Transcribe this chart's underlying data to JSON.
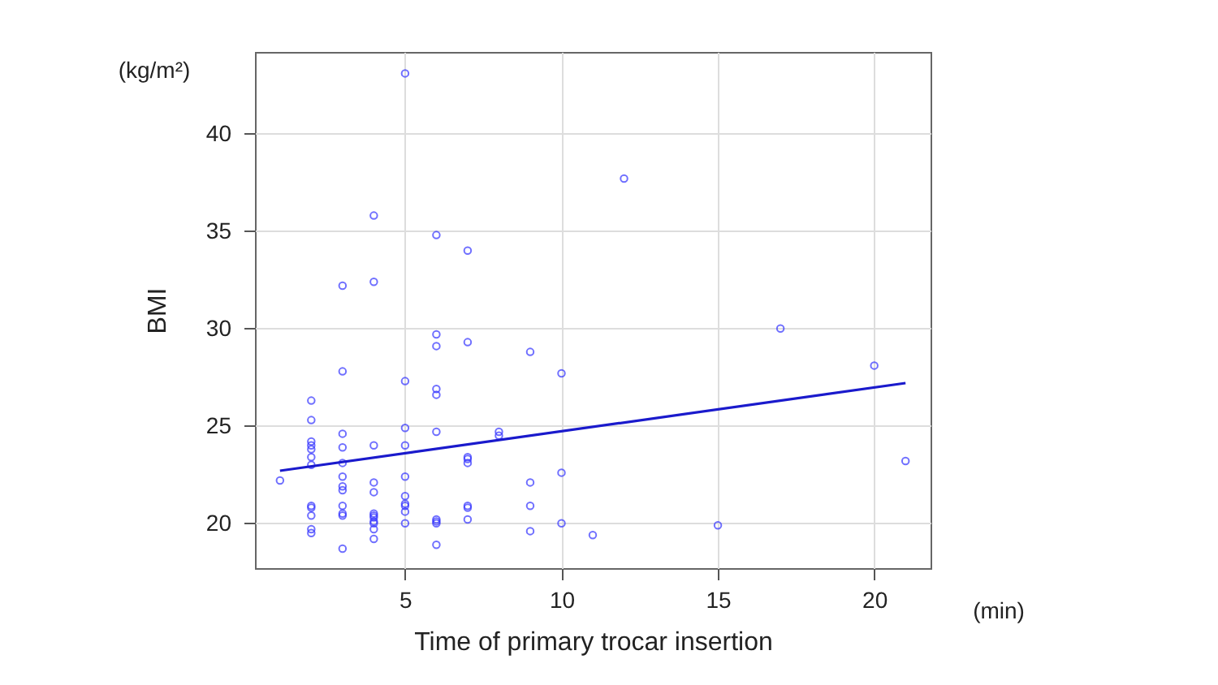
{
  "chart_data": {
    "type": "scatter",
    "xlabel": "Time of primary trocar insertion",
    "ylabel": "BMI",
    "annotations": [
      "(kg/m²)",
      "(min)"
    ],
    "xlim": [
      0.2,
      21.8
    ],
    "xticks": [
      5,
      10,
      15,
      20
    ],
    "ylim": [
      17.7,
      44.2
    ],
    "yticks": [
      20,
      25,
      30,
      35,
      40
    ],
    "grid": true,
    "series": [
      {
        "marker": "circle",
        "color": "#3333ff",
        "x": [
          1,
          2,
          2,
          2,
          2,
          2,
          2,
          2,
          2,
          2,
          2,
          2,
          2,
          3,
          3,
          3,
          3,
          3,
          3,
          3,
          3,
          3,
          3,
          3,
          3,
          4,
          4,
          4,
          4,
          4,
          4,
          4,
          4,
          4,
          4,
          4,
          4,
          5,
          5,
          5,
          5,
          5,
          5,
          5,
          5,
          5,
          5,
          6,
          6,
          6,
          6,
          6,
          6,
          6,
          6,
          6,
          6,
          7,
          7,
          7,
          7,
          7,
          7,
          7,
          7,
          8,
          8,
          9,
          9,
          9,
          9,
          10,
          10,
          10,
          11,
          12,
          15,
          17,
          20,
          21
        ],
        "values": [
          22.2,
          26.3,
          25.3,
          24.2,
          24.0,
          23.8,
          23.4,
          23.0,
          20.9,
          20.8,
          20.4,
          19.7,
          19.5,
          32.2,
          27.8,
          24.6,
          23.9,
          23.1,
          22.4,
          21.9,
          21.7,
          20.9,
          20.5,
          20.4,
          18.7,
          35.8,
          32.4,
          24.0,
          22.1,
          21.6,
          20.5,
          20.4,
          20.3,
          20.1,
          20.0,
          19.7,
          19.2,
          43.1,
          27.3,
          24.9,
          24.0,
          22.4,
          21.4,
          21.0,
          20.9,
          20.6,
          20.0,
          34.8,
          29.7,
          29.1,
          26.9,
          26.6,
          24.7,
          20.2,
          20.1,
          20.0,
          18.9,
          34.0,
          29.3,
          23.4,
          23.3,
          23.1,
          20.9,
          20.8,
          20.2,
          24.7,
          24.5,
          28.8,
          22.1,
          20.9,
          19.6,
          27.7,
          22.6,
          20.0,
          19.4,
          37.7,
          19.9,
          30.0,
          28.1,
          23.2
        ]
      },
      {
        "type": "line",
        "color": "#1a1acc",
        "x": [
          1,
          21
        ],
        "values": [
          22.7,
          27.2
        ]
      }
    ]
  }
}
